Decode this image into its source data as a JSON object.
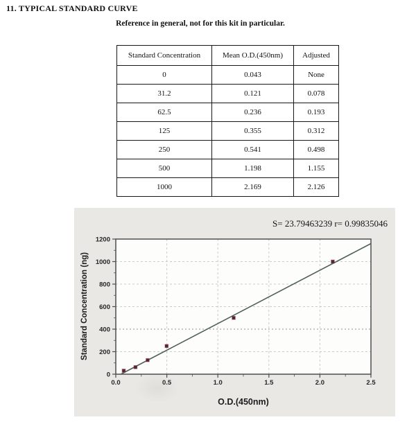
{
  "page": {
    "section_title": "11. TYPICAL STANDARD CURVE",
    "subtitle": "Reference in general, not for this kit in particular."
  },
  "table": {
    "headers": [
      "Standard Concentration",
      "Mean O.D.(450nm)",
      "Adjusted"
    ],
    "rows": [
      {
        "conc": "0",
        "od": "0.043",
        "adj": "None"
      },
      {
        "conc": "31.2",
        "od": "0.121",
        "adj": "0.078"
      },
      {
        "conc": "62.5",
        "od": "0.236",
        "adj": "0.193"
      },
      {
        "conc": "125",
        "od": "0.355",
        "adj": "0.312"
      },
      {
        "conc": "250",
        "od": "0.541",
        "adj": "0.498"
      },
      {
        "conc": "500",
        "od": "1.198",
        "adj": "1.155"
      },
      {
        "conc": "1000",
        "od": "2.169",
        "adj": "2.126"
      }
    ]
  },
  "chart_data": {
    "type": "scatter",
    "stats_annotation": "S= 23.79463239  r= 0.99835046",
    "s_value": 23.79463239,
    "r_value": 0.99835046,
    "xlabel": "O.D.(450nm)",
    "ylabel": "Standard Concentration (ng)",
    "xlim": [
      0,
      2.5
    ],
    "ylim": [
      0,
      1200
    ],
    "x_ticks": [
      0,
      0.5,
      1,
      1.5,
      2,
      2.5
    ],
    "x_tick_labels": [
      "0.0",
      "0.5",
      "1.0",
      "1.5",
      "2.0",
      "2.5"
    ],
    "y_ticks": [
      0,
      200,
      400,
      600,
      800,
      1000,
      1200
    ],
    "y_tick_labels": [
      "0",
      "200",
      "400",
      "600",
      "800",
      "1000",
      "1200"
    ],
    "minor_x_step": 0.25,
    "minor_y_step": 100,
    "grid": true,
    "emphasized_gridline_y": 400,
    "points": {
      "x": [
        0.078,
        0.193,
        0.312,
        0.498,
        1.155,
        2.126
      ],
      "y": [
        31.2,
        62.5,
        125,
        250,
        500,
        1000
      ]
    },
    "fit_line": {
      "x": [
        0.05,
        2.5
      ],
      "y": [
        0,
        1160
      ]
    },
    "legend": "none",
    "colors": {
      "panel_bg": "#e9e8e5",
      "plot_bg": "#fdfdfc",
      "grid": "#c7cdc7",
      "grid_emphasized": "#8f948f",
      "axis": "#4d4d4d",
      "line": "#4e5e58",
      "marker": "#432c37",
      "marker_edge": "rgba(168,48,70,0.55)"
    }
  }
}
